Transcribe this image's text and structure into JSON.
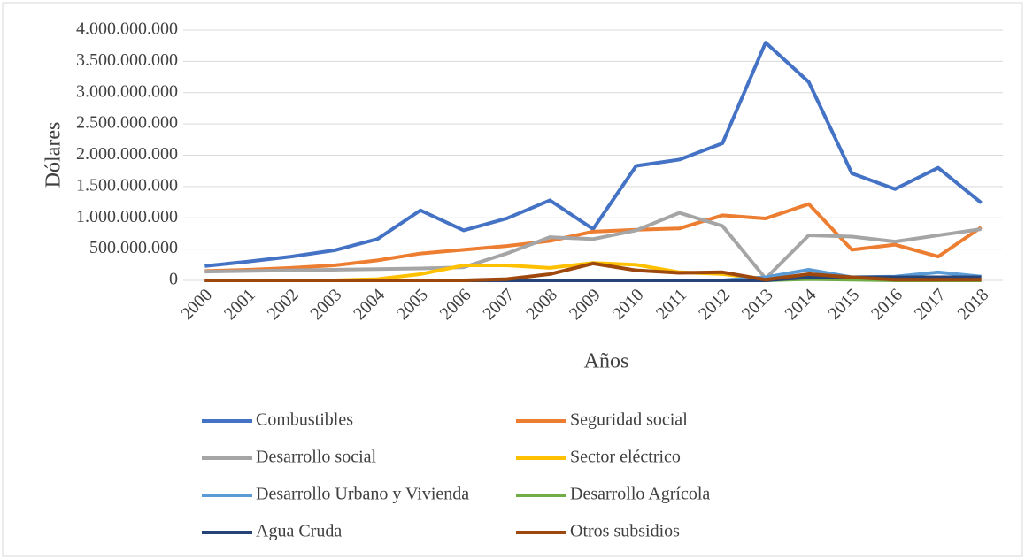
{
  "chart_data": {
    "type": "line",
    "x_label": "Años",
    "y_label": "Dólares",
    "categories": [
      "2000",
      "2001",
      "2002",
      "2003",
      "2004",
      "2005",
      "2006",
      "2007",
      "2008",
      "2009",
      "2010",
      "2011",
      "2012",
      "2013",
      "2014",
      "2015",
      "2016",
      "2017",
      "2018"
    ],
    "ylim": [
      0,
      4000000000
    ],
    "yticks": [
      0,
      {
        "value": 500000000,
        "label": "500.000.000"
      },
      {
        "value": 1000000000,
        "label": "1.000.000.000"
      },
      {
        "value": 1500000000,
        "label": "1.500.000.000"
      },
      {
        "value": 2000000000,
        "label": "2.000.000.000"
      },
      {
        "value": 2500000000,
        "label": "2.500.000.000"
      },
      {
        "value": 3000000000,
        "label": "3.000.000.000"
      },
      {
        "value": 3500000000,
        "label": "3.500.000.000"
      },
      {
        "value": 4000000000,
        "label": "4.000.000.000"
      }
    ],
    "grid": true,
    "legend": "bottom",
    "series": [
      {
        "name": "Combustibles",
        "color": "#4472c4",
        "values": [
          230000000,
          300000000,
          380000000,
          480000000,
          660000000,
          1120000000,
          800000000,
          990000000,
          1280000000,
          820000000,
          1830000000,
          1930000000,
          2190000000,
          3800000000,
          3170000000,
          1710000000,
          1460000000,
          1800000000,
          1240000000
        ]
      },
      {
        "name": "Seguridad social",
        "color": "#ed7d31",
        "values": [
          150000000,
          170000000,
          200000000,
          240000000,
          320000000,
          430000000,
          490000000,
          550000000,
          630000000,
          780000000,
          810000000,
          830000000,
          1040000000,
          990000000,
          1220000000,
          490000000,
          570000000,
          380000000,
          850000000
        ]
      },
      {
        "name": "Desarrollo social",
        "color": "#a5a5a5",
        "values": [
          140000000,
          150000000,
          160000000,
          170000000,
          180000000,
          190000000,
          210000000,
          430000000,
          690000000,
          660000000,
          800000000,
          1080000000,
          870000000,
          30000000,
          720000000,
          700000000,
          620000000,
          720000000,
          820000000
        ]
      },
      {
        "name": "Sector eléctrico",
        "color": "#ffc000",
        "values": [
          0,
          0,
          0,
          0,
          20000000,
          100000000,
          240000000,
          240000000,
          200000000,
          280000000,
          250000000,
          130000000,
          100000000,
          20000000,
          50000000,
          30000000,
          10000000,
          10000000,
          10000000
        ]
      },
      {
        "name": "Desarrollo Urbano y Vivienda",
        "color": "#5b9bd5",
        "values": [
          0,
          0,
          0,
          0,
          0,
          0,
          0,
          0,
          0,
          0,
          0,
          0,
          0,
          50000000,
          170000000,
          50000000,
          60000000,
          130000000,
          60000000
        ]
      },
      {
        "name": "Desarrollo Agrícola",
        "color": "#70ad47",
        "values": [
          0,
          0,
          0,
          0,
          0,
          0,
          0,
          0,
          0,
          0,
          0,
          0,
          0,
          0,
          20000000,
          10000000,
          0,
          0,
          0
        ]
      },
      {
        "name": "Agua Cruda",
        "color": "#264478",
        "values": [
          0,
          0,
          0,
          0,
          0,
          0,
          0,
          0,
          0,
          0,
          0,
          0,
          0,
          0,
          50000000,
          50000000,
          50000000,
          50000000,
          50000000
        ]
      },
      {
        "name": "Otros subsidios",
        "color": "#9e480e",
        "values": [
          0,
          0,
          0,
          0,
          0,
          0,
          0,
          20000000,
          100000000,
          270000000,
          160000000,
          120000000,
          130000000,
          10000000,
          100000000,
          50000000,
          10000000,
          10000000,
          10000000
        ]
      }
    ]
  }
}
